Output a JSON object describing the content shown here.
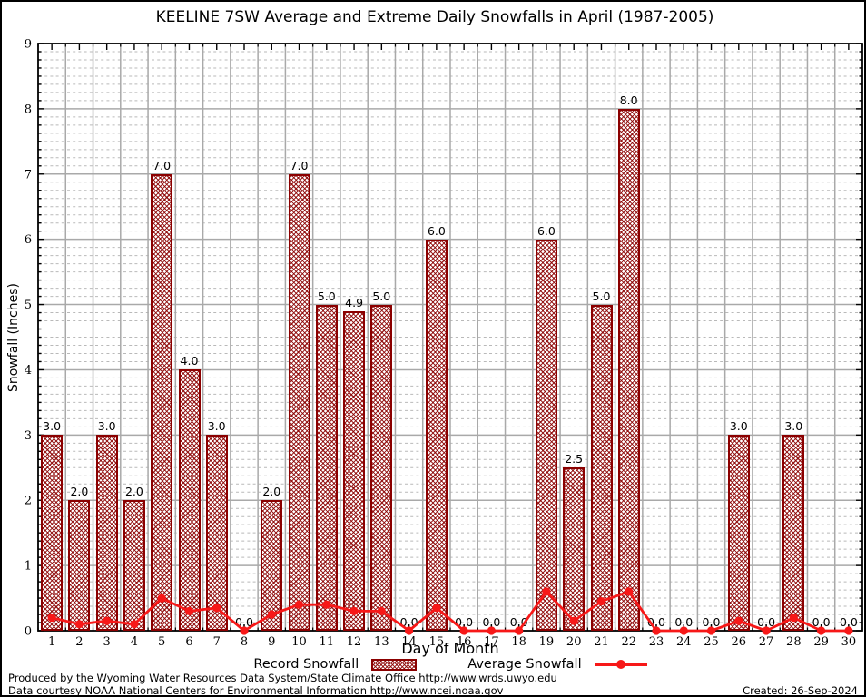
{
  "title": "KEELINE 7SW Average and Extreme Daily Snowfalls in April (1987-2005)",
  "y_axis_label": "Snowfall (Inches)",
  "x_axis_label": "Day of Month",
  "legend": {
    "record_label": "Record Snowfall",
    "average_label": "Average Snowfall"
  },
  "footer": {
    "line1": "Produced by the Wyoming Water Resources Data System/State Climate Office http://www.wrds.uwyo.edu",
    "line2": "Data courtesy NOAA National Centers for Environmental Information http://www.ncei.noaa.gov",
    "created": "Created: 26-Sep-2024"
  },
  "colors": {
    "bar_border": "#8b0000",
    "bar_hatch": "#8b0000",
    "average_line": "#f71818",
    "grid_major": "#a9a9a9",
    "grid_minor": "#b9b9b9",
    "axis": "#000000",
    "text": "#000000"
  },
  "chart_data": {
    "type": "bar",
    "title": "KEELINE 7SW Average and Extreme Daily Snowfalls in April (1987-2005)",
    "xlabel": "Day of Month",
    "ylabel": "Snowfall (Inches)",
    "categories": [
      1,
      2,
      3,
      4,
      5,
      6,
      7,
      8,
      9,
      10,
      11,
      12,
      13,
      14,
      15,
      16,
      17,
      18,
      19,
      20,
      21,
      22,
      23,
      24,
      25,
      26,
      27,
      28,
      29,
      30
    ],
    "series": [
      {
        "name": "Record Snowfall",
        "type": "bar",
        "values": [
          3.0,
          2.0,
          3.0,
          2.0,
          7.0,
          4.0,
          3.0,
          0.0,
          2.0,
          7.0,
          5.0,
          4.9,
          5.0,
          0.0,
          6.0,
          0.0,
          0.0,
          0.0,
          6.0,
          2.5,
          5.0,
          8.0,
          0.0,
          0.0,
          0.0,
          3.0,
          0.0,
          3.0,
          0.0,
          0.0
        ],
        "labels": [
          "3.0",
          "2.0",
          "3.0",
          "2.0",
          "7.0",
          "4.0",
          "3.0",
          "0.0",
          "2.0",
          "7.0",
          "5.0",
          "4.9",
          "5.0",
          "0.0",
          "6.0",
          "0.0",
          "0.0",
          "0.0",
          "6.0",
          "2.5",
          "5.0",
          "8.0",
          "0.0",
          "0.0",
          "0.0",
          "3.0",
          "0.0",
          "3.0",
          "0.0",
          "0.0"
        ]
      },
      {
        "name": "Average Snowfall",
        "type": "line",
        "values": [
          0.2,
          0.1,
          0.15,
          0.1,
          0.5,
          0.3,
          0.35,
          0.0,
          0.25,
          0.4,
          0.4,
          0.3,
          0.3,
          0.0,
          0.35,
          0.0,
          0.0,
          0.0,
          0.6,
          0.15,
          0.45,
          0.6,
          0.0,
          0.0,
          0.0,
          0.15,
          0.0,
          0.2,
          0.0,
          0.0
        ]
      }
    ],
    "ylim": [
      0,
      9
    ],
    "yticks": [
      0,
      1,
      2,
      3,
      4,
      5,
      6,
      7,
      8,
      9
    ],
    "grid": true,
    "legend_position": "bottom"
  }
}
